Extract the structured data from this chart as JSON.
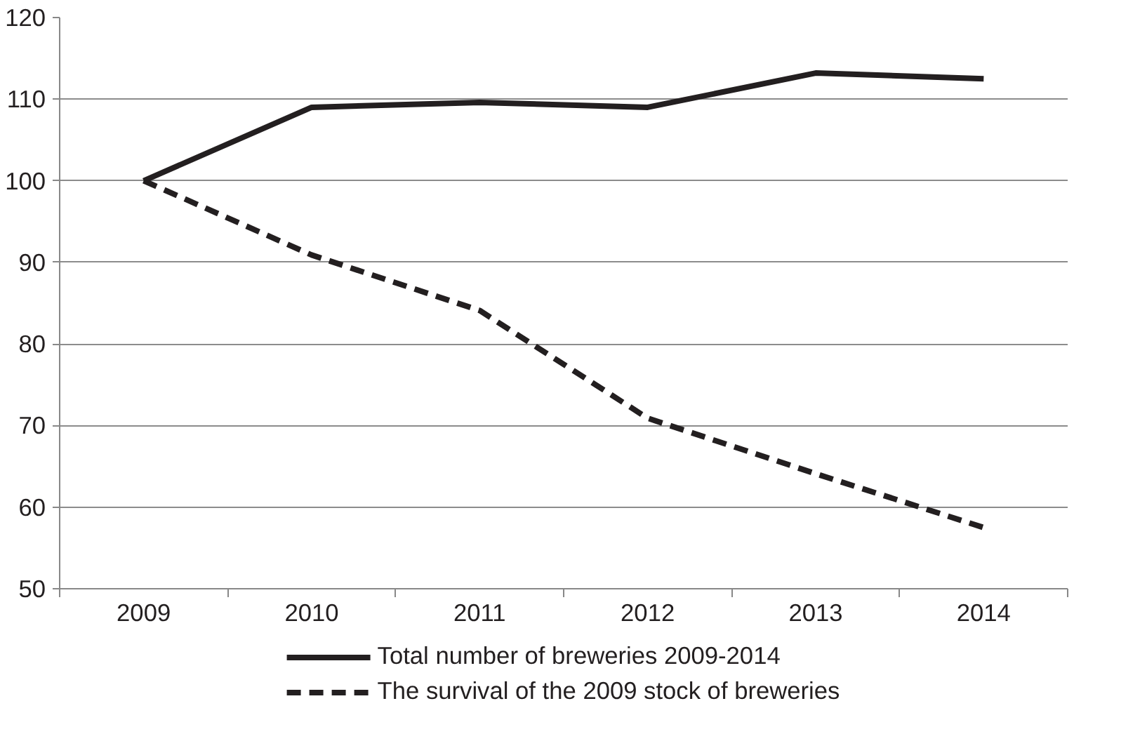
{
  "chart_data": {
    "type": "line",
    "categories": [
      "2009",
      "2010",
      "2011",
      "2012",
      "2013",
      "2014"
    ],
    "series": [
      {
        "name": "Total number of breweries 2009-2014",
        "color": "#231f20",
        "line_style": "solid",
        "values": [
          100,
          109,
          109.6,
          109,
          113.2,
          112.5
        ]
      },
      {
        "name": "The survival of the 2009 stock of breweries",
        "color": "#231f20",
        "line_style": "dashed",
        "values": [
          100,
          90.9,
          84.1,
          70.9,
          64.1,
          57.5
        ]
      }
    ],
    "ylim": [
      50,
      120
    ],
    "yticks": [
      50,
      60,
      70,
      80,
      90,
      100,
      110,
      120
    ],
    "grid": "y",
    "legend": "bottom",
    "marker": "none"
  }
}
